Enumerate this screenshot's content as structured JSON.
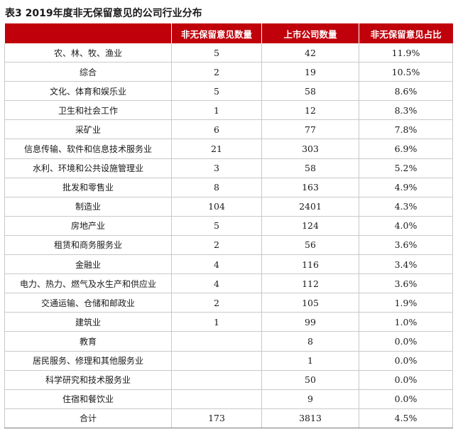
{
  "caption": "表3  2019年度非无保留意见的公司行业分布",
  "colors": {
    "header_bg": "#c0000b",
    "header_text": "#ffffff"
  },
  "headers": [
    "",
    "非无保留意见数量",
    "上市公司数量",
    "非无保留意见占比"
  ],
  "rows": [
    [
      "农、林、牧、渔业",
      "5",
      "42",
      "11.9%"
    ],
    [
      "综合",
      "2",
      "19",
      "10.5%"
    ],
    [
      "文化、体育和娱乐业",
      "5",
      "58",
      "8.6%"
    ],
    [
      "卫生和社会工作",
      "1",
      "12",
      "8.3%"
    ],
    [
      "采矿业",
      "6",
      "77",
      "7.8%"
    ],
    [
      "信息传输、软件和信息技术服务业",
      "21",
      "303",
      "6.9%"
    ],
    [
      "水利、环境和公共设施管理业",
      "3",
      "58",
      "5.2%"
    ],
    [
      "批发和零售业",
      "8",
      "163",
      "4.9%"
    ],
    [
      "制造业",
      "104",
      "2401",
      "4.3%"
    ],
    [
      "房地产业",
      "5",
      "124",
      "4.0%"
    ],
    [
      "租赁和商务服务业",
      "2",
      "56",
      "3.6%"
    ],
    [
      "金融业",
      "4",
      "116",
      "3.4%"
    ],
    [
      "电力、热力、燃气及水生产和供应业",
      "4",
      "112",
      "3.6%"
    ],
    [
      "交通运输、仓储和邮政业",
      "2",
      "105",
      "1.9%"
    ],
    [
      "建筑业",
      "1",
      "99",
      "1.0%"
    ],
    [
      "教育",
      "",
      "8",
      "0.0%"
    ],
    [
      "居民服务、修理和其他服务业",
      "",
      "1",
      "0.0%"
    ],
    [
      "科学研究和技术服务业",
      "",
      "50",
      "0.0%"
    ],
    [
      "住宿和餐饮业",
      "",
      "9",
      "0.0%"
    ],
    [
      "合计",
      "173",
      "3813",
      "4.5%"
    ]
  ]
}
